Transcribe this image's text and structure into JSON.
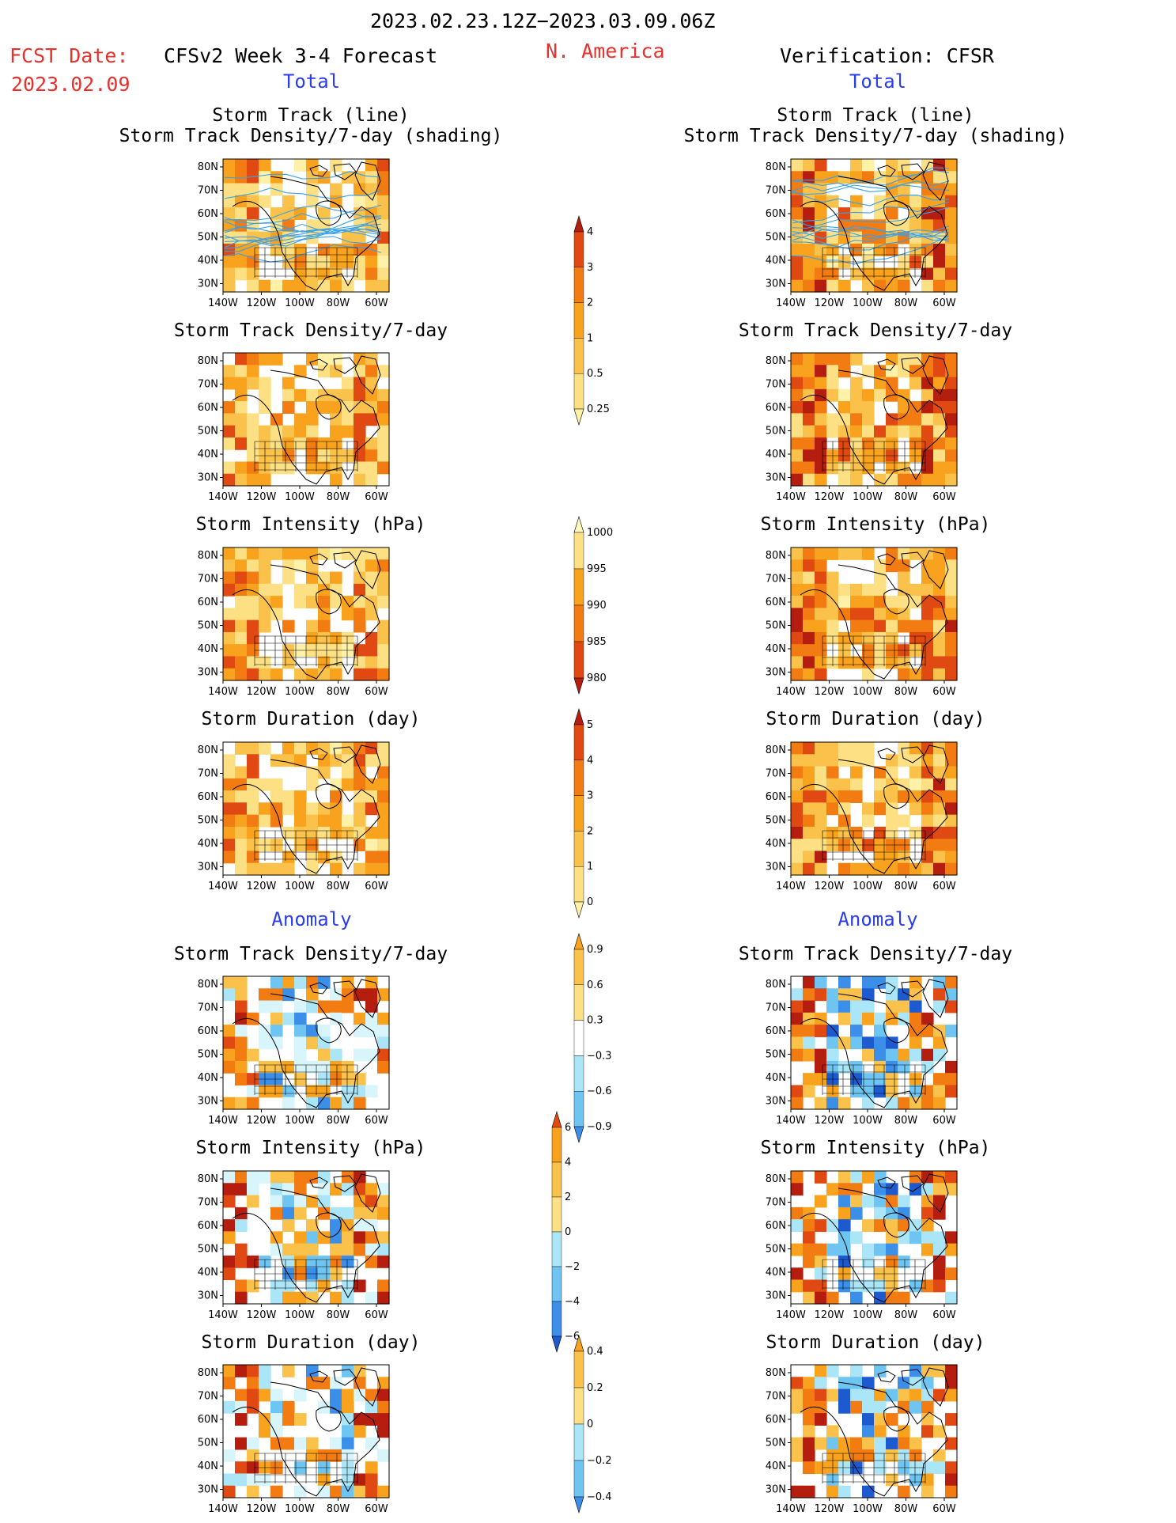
{
  "header": {
    "date_range": "2023.02.23.12Z−2023.03.09.06Z",
    "fcst_label": "FCST Date:",
    "fcst_date": "2023.02.09",
    "model_title": "CFSv2 Week 3-4 Forecast",
    "region": "N. America",
    "verification": "Verification: CFSR"
  },
  "sections": {
    "total": "Total",
    "anomaly": "Anomaly"
  },
  "panel_titles": {
    "track_line": "Storm Track (line)",
    "track_shading": "Storm Track Density/7-day (shading)",
    "density": "Storm Track Density/7-day",
    "intensity": "Storm Intensity (hPa)",
    "duration": "Storm Duration (day)"
  },
  "axes": {
    "lat_labels": [
      "80N",
      "70N",
      "60N",
      "50N",
      "40N",
      "30N"
    ],
    "lon_labels": [
      "140W",
      "120W",
      "100W",
      "80W",
      "60W"
    ]
  },
  "colorbars": {
    "density_total": [
      "4",
      "3",
      "2",
      "1",
      "0.5",
      "0.25"
    ],
    "intensity_total": [
      "1000",
      "995",
      "990",
      "985",
      "980"
    ],
    "duration_total": [
      "5",
      "4",
      "3",
      "2",
      "1",
      "0"
    ],
    "density_anom": [
      "0.9",
      "0.6",
      "0.3",
      "−0.3",
      "−0.6",
      "−0.9"
    ],
    "intensity_anom": [
      "6",
      "4",
      "2",
      "0",
      "−2",
      "−4",
      "−6"
    ],
    "duration_anom": [
      "0.4",
      "0.2",
      "0",
      "−0.2",
      "−0.4"
    ]
  },
  "colors": {
    "red_text": "#e8302c",
    "blue_text": "#2a3cf0",
    "warm_scale": [
      "#fff2a8",
      "#fde083",
      "#fbc24b",
      "#f9a21e",
      "#f27b12",
      "#e04a12",
      "#b51d0e"
    ],
    "cool_scale": [
      "#d8f5fb",
      "#aae6f7",
      "#6fc5f2",
      "#3c8fe8",
      "#1d5ad0"
    ],
    "track_line": "#3aa0e8"
  }
}
